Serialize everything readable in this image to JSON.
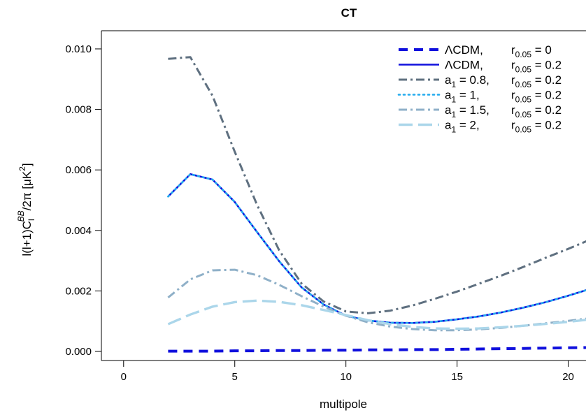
{
  "chart_data": {
    "type": "line",
    "title": "CT",
    "xlabel": "multipole",
    "ylabel": {
      "prefix": "l(l+1)C",
      "sub": "l",
      "sup": "BB",
      "suffix": "/2π  [μK",
      "unit_sup": "2",
      "close": "]"
    },
    "xlim": [
      -1,
      20.8
    ],
    "ylim": [
      -0.0003,
      0.0106
    ],
    "xticks": [
      0,
      5,
      10,
      15,
      20
    ],
    "xtick_labels": [
      "0",
      "5",
      "10",
      "15",
      "20"
    ],
    "yticks": [
      0.0,
      0.002,
      0.004,
      0.006,
      0.008,
      0.01
    ],
    "ytick_labels": [
      "0.000",
      "0.002",
      "0.004",
      "0.006",
      "0.008",
      "0.010"
    ],
    "grid": false,
    "legend_position": "top-right",
    "x": [
      2,
      3,
      4,
      5,
      6,
      7,
      8,
      9,
      10,
      11,
      12,
      13,
      14,
      15,
      16,
      17,
      18,
      19,
      20,
      21
    ],
    "series": [
      {
        "label_main": "ΛCDM,",
        "label_r": "r",
        "label_r_sub": "0.05",
        "label_r_val": " = 0",
        "color": "#1010dd",
        "dash": "13,9",
        "width": 4,
        "values": [
          1e-05,
          1e-05,
          1e-05,
          2e-05,
          2e-05,
          3e-05,
          3e-05,
          4e-05,
          4e-05,
          5e-05,
          5e-05,
          6e-05,
          6e-05,
          7e-05,
          8e-05,
          9e-05,
          0.0001,
          0.00011,
          0.00012,
          0.00013
        ]
      },
      {
        "label_main": "ΛCDM,",
        "label_r": "r",
        "label_r_sub": "0.05",
        "label_r_val": " = 0.2",
        "color": "#1010dd",
        "dash": "",
        "width": 2.6,
        "values": [
          0.00512,
          0.00586,
          0.00568,
          0.00494,
          0.00395,
          0.00298,
          0.00212,
          0.00155,
          0.00118,
          0.00102,
          0.00095,
          0.00094,
          0.00098,
          0.00106,
          0.00116,
          0.00129,
          0.00145,
          0.00163,
          0.00184,
          0.00207
        ]
      },
      {
        "label_main": "a",
        "label_a_sub": "1",
        "label_a_val": " = 0.8,",
        "label_r": "r",
        "label_r_sub": "0.05",
        "label_r_val": " = 0.2",
        "color": "#5f7080",
        "dash": "12,5,3,5",
        "width": 3,
        "values": [
          0.00967,
          0.00973,
          0.00845,
          0.0066,
          0.00485,
          0.00334,
          0.00225,
          0.00165,
          0.00132,
          0.00126,
          0.00135,
          0.00152,
          0.00174,
          0.00198,
          0.00224,
          0.00251,
          0.0028,
          0.0031,
          0.00339,
          0.0037
        ]
      },
      {
        "label_main": "a",
        "label_a_sub": "1",
        "label_a_val": " = 1,",
        "label_r": "r",
        "label_r_sub": "0.05",
        "label_r_val": " = 0.2",
        "color": "#22aaee",
        "dash": "2,5",
        "width": 2.6,
        "values": [
          0.00512,
          0.00586,
          0.00568,
          0.00494,
          0.00395,
          0.00298,
          0.00212,
          0.00155,
          0.00118,
          0.00102,
          0.00095,
          0.00094,
          0.00098,
          0.00106,
          0.00116,
          0.00129,
          0.00145,
          0.00163,
          0.00184,
          0.00207
        ]
      },
      {
        "label_main": "a",
        "label_a_sub": "1",
        "label_a_val": " = 1.5,",
        "label_r": "r",
        "label_r_sub": "0.05",
        "label_r_val": " = 0.2",
        "color": "#8fb0c8",
        "dash": "12,5,3,5",
        "width": 3,
        "values": [
          0.00178,
          0.00238,
          0.00268,
          0.0027,
          0.00252,
          0.0022,
          0.00183,
          0.00148,
          0.00118,
          0.00096,
          0.00082,
          0.00074,
          0.0007,
          0.0007,
          0.00073,
          0.00078,
          0.00085,
          0.00093,
          0.00101,
          0.0011
        ]
      },
      {
        "label_main": "a",
        "label_a_sub": "1",
        "label_a_val": " = 2,",
        "label_r": "r",
        "label_r_sub": "0.05",
        "label_r_val": " = 0.2",
        "color": "#abd6ea",
        "dash": "20,8",
        "width": 3.4,
        "values": [
          0.0009,
          0.00122,
          0.00148,
          0.00163,
          0.00168,
          0.00164,
          0.00153,
          0.00137,
          0.0012,
          0.00103,
          0.0009,
          0.00081,
          0.00076,
          0.00075,
          0.00076,
          0.0008,
          0.00085,
          0.00091,
          0.00098,
          0.00106
        ]
      }
    ]
  }
}
